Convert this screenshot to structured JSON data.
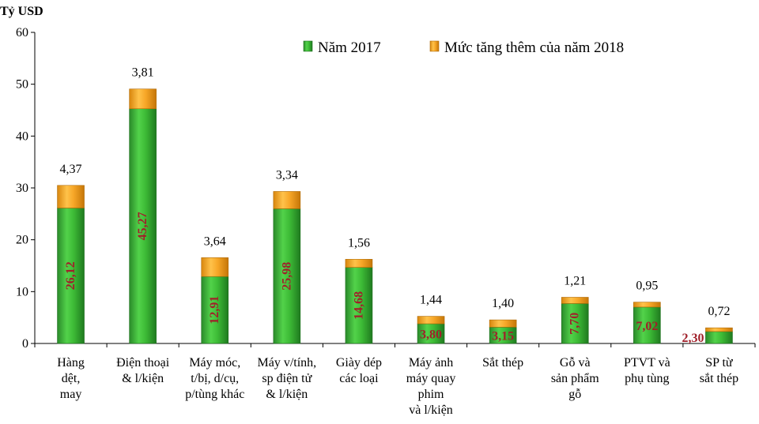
{
  "chart_data": {
    "type": "bar",
    "stacked": true,
    "ylabel": "Tỷ USD",
    "ylim": [
      0,
      60
    ],
    "yticks": [
      0,
      10,
      20,
      30,
      40,
      50,
      60
    ],
    "grid": false,
    "legend_position": "top-right",
    "categories": [
      [
        "Hàng",
        "dệt,",
        "may"
      ],
      [
        "Điện thoại",
        "& l/kiện"
      ],
      [
        "Máy móc,",
        "t/bị, d/cụ,",
        "p/tùng khác"
      ],
      [
        "Máy v/tính,",
        "sp điện tử",
        "& l/kiện"
      ],
      [
        "Giày dép",
        "các loại"
      ],
      [
        "Máy ảnh",
        "máy quay",
        "phim",
        "và l/kiện"
      ],
      [
        "Sắt thép"
      ],
      [
        "Gỗ và",
        "sản phẩm",
        "gỗ"
      ],
      [
        "PTVT và",
        "phụ tùng"
      ],
      [
        "SP từ",
        "sắt thép"
      ]
    ],
    "series": [
      {
        "name": "Năm 2017",
        "color": "#33aa33",
        "values": [
          26.12,
          45.27,
          12.91,
          25.98,
          14.68,
          3.8,
          3.15,
          7.7,
          7.02,
          2.3
        ],
        "labels": [
          "26,12",
          "45,27",
          "12,91",
          "25,98",
          "14,68",
          "3,80",
          "3,15",
          "7,70",
          "7,02",
          "2,30"
        ]
      },
      {
        "name": "Mức tăng thêm của năm 2018",
        "color": "#f2a21e",
        "values": [
          4.37,
          3.81,
          3.64,
          3.34,
          1.56,
          1.44,
          1.4,
          1.21,
          0.95,
          0.72
        ],
        "labels": [
          "4,37",
          "3,81",
          "3,64",
          "3,34",
          "1,56",
          "1,44",
          "1,40",
          "1,21",
          "0,95",
          "0,72"
        ]
      }
    ]
  }
}
